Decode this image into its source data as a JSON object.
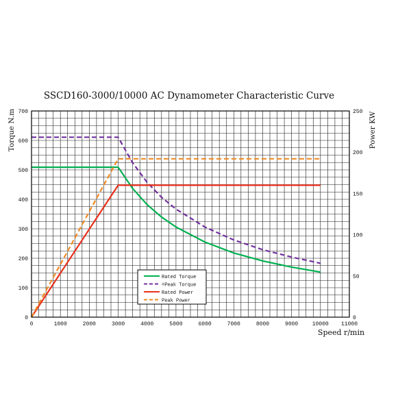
{
  "chart_data": {
    "type": "line",
    "title": "SSCD160-3000/10000 AC Dynamometer Characteristic Curve",
    "xlabel": "Speed r/min",
    "ylabel_left": "Torque N.m",
    "ylabel_right": "Power KW",
    "xlim": [
      0,
      11000
    ],
    "ylim_left": [
      0,
      700
    ],
    "ylim_right": [
      0,
      250
    ],
    "x_ticks": [
      0,
      1000,
      2000,
      3000,
      4000,
      5000,
      6000,
      7000,
      8000,
      9000,
      10000,
      11000
    ],
    "y_left_ticks": [
      0,
      100,
      200,
      300,
      400,
      500,
      600,
      700
    ],
    "y_right_ticks": [
      0,
      50,
      100,
      150,
      200,
      250
    ],
    "grid": true,
    "legend_position": "bottom-center",
    "series": [
      {
        "name": "Rated Torque",
        "axis": "left",
        "color": "#00b050",
        "dash": "solid",
        "x": [
          0,
          3000,
          3500,
          4000,
          4500,
          5000,
          6000,
          7000,
          8000,
          9000,
          10000
        ],
        "y": [
          509,
          509,
          437,
          382,
          340,
          306,
          255,
          218,
          191,
          170,
          153
        ]
      },
      {
        "name": "Peak Torque",
        "axis": "left",
        "color": "#7030a0",
        "dash": "dashed",
        "x": [
          0,
          3000,
          3500,
          4000,
          4500,
          5000,
          6000,
          7000,
          8000,
          9000,
          10000
        ],
        "y": [
          611,
          611,
          524,
          458,
          407,
          367,
          306,
          262,
          229,
          204,
          183
        ]
      },
      {
        "name": "Rated Power",
        "axis": "right",
        "color": "#e8301c",
        "dash": "solid",
        "x": [
          0,
          3000,
          10000
        ],
        "y": [
          0,
          160,
          160
        ]
      },
      {
        "name": "Peak Power",
        "axis": "right",
        "color": "#f08a24",
        "dash": "dashed",
        "x": [
          0,
          3000,
          10000
        ],
        "y": [
          0,
          192,
          192
        ]
      }
    ],
    "legend_labels": [
      "Rated Torque",
      "=Peak Torque",
      "Rated Power",
      "Peak Power"
    ]
  }
}
